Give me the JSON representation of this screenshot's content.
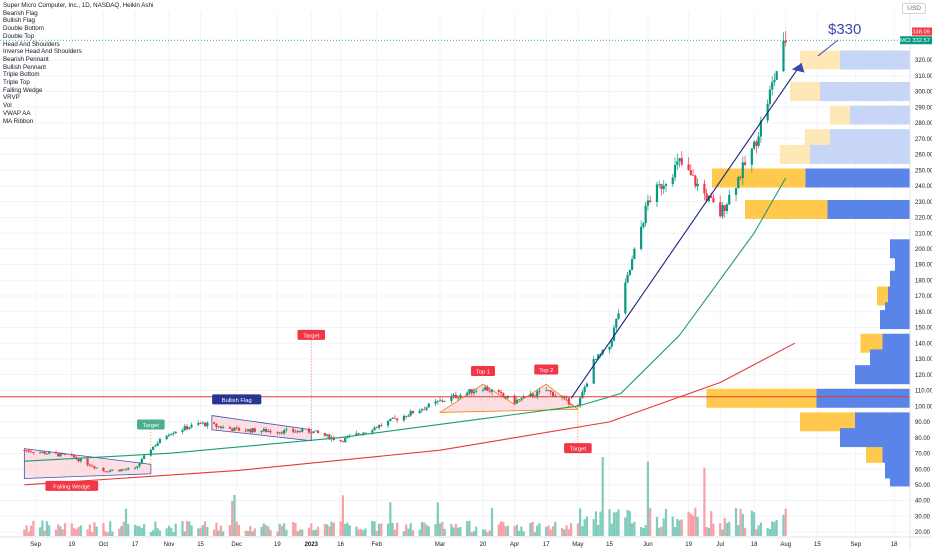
{
  "header": {
    "title": "Super Micro Computer, Inc., 1D, NASDAQ, Heikin Ashi",
    "currency": "USD"
  },
  "indicators": [
    "Bearish Flag",
    "Bullish Flag",
    "Double Bottom",
    "Double Top",
    "Head And Shoulders",
    "Inverse Head And Shoulders",
    "Bearish Pennant",
    "Bullish Pennant",
    "Triple Bottom",
    "Triple Top",
    "Falling Wedge",
    "VRVP",
    "Vol",
    "VWAP AA",
    "MA Ribbon"
  ],
  "price_tags": [
    {
      "value": "338.09",
      "color": "#f23645"
    },
    {
      "value": "332.57",
      "color": "#089981",
      "prefix": "SMCI"
    }
  ],
  "colors": {
    "up": "#089981",
    "down": "#f23645",
    "vol_up": "#7fcbbc",
    "vol_down": "#f7a1a6",
    "ma_green": "#1e9b6e",
    "ma_red": "#e53935",
    "trend_blue": "#1a237e",
    "vp_up": "#5b84e8",
    "vp_down": "#ffc94d",
    "vp_up_light": "#c7d6f6",
    "vp_down_light": "#ffe8b8",
    "pattern_fill": "#f8c9cf",
    "pattern_line_blue": "#3f51b5",
    "pattern_line_orange": "#f57c00",
    "label_red": "#f23645",
    "label_green": "#4caf8a",
    "label_navy": "#283593",
    "resistance": "#e53935",
    "annotation": "#3949ab"
  },
  "chart_data": {
    "type": "candlestick",
    "title": "Super Micro Computer, Inc., 1D, NASDAQ, Heikin Ashi",
    "y_axis": {
      "ticks": [
        20,
        30,
        40,
        50,
        60,
        70,
        80,
        90,
        100,
        110,
        120,
        130,
        140,
        150,
        160,
        170,
        180,
        190,
        200,
        210,
        220,
        230,
        240,
        250,
        260,
        270,
        280,
        290,
        300,
        310,
        320
      ],
      "range": [
        17,
        345
      ],
      "position": "right"
    },
    "x_axis": {
      "ticks": [
        "Sep",
        "19",
        "Oct",
        "17",
        "Nov",
        "15",
        "Dec",
        "19",
        "2023",
        "16",
        "Feb",
        "Mar",
        "20",
        "Apr",
        "17",
        "May",
        "15",
        "Jun",
        "19",
        "Jul",
        "18",
        "Aug",
        "15",
        "Sep",
        "18"
      ]
    },
    "price_series": [
      [
        "2022-08-29",
        72
      ],
      [
        "2022-09-19",
        68
      ],
      [
        "2022-10-03",
        59
      ],
      [
        "2022-10-17",
        60
      ],
      [
        "2022-10-24",
        73
      ],
      [
        "2022-11-01",
        83
      ],
      [
        "2022-11-15",
        89
      ],
      [
        "2022-12-01",
        85
      ],
      [
        "2022-12-19",
        84
      ],
      [
        "2023-01-03",
        84
      ],
      [
        "2023-01-16",
        78
      ],
      [
        "2023-02-01",
        87
      ],
      [
        "2023-03-01",
        103
      ],
      [
        "2023-03-20",
        112
      ],
      [
        "2023-04-03",
        103
      ],
      [
        "2023-04-17",
        110
      ],
      [
        "2023-05-01",
        100
      ],
      [
        "2023-05-08",
        128
      ],
      [
        "2023-05-15",
        138
      ],
      [
        "2023-06-01",
        230
      ],
      [
        "2023-06-15",
        255
      ],
      [
        "2023-07-03",
        222
      ],
      [
        "2023-07-18",
        265
      ],
      [
        "2023-08-01",
        333
      ]
    ],
    "ma_series": [
      {
        "color": "green",
        "values": [
          [
            "2022-08-29",
            65
          ],
          [
            "2022-11-01",
            70
          ],
          [
            "2023-01-16",
            80
          ],
          [
            "2023-03-20",
            92
          ],
          [
            "2023-05-01",
            100
          ],
          [
            "2023-05-20",
            108
          ],
          [
            "2023-06-15",
            145
          ],
          [
            "2023-07-18",
            210
          ],
          [
            "2023-08-01",
            245
          ]
        ]
      },
      {
        "color": "red",
        "values": [
          [
            "2022-08-29",
            50
          ],
          [
            "2022-12-01",
            59
          ],
          [
            "2023-03-01",
            72
          ],
          [
            "2023-05-15",
            90
          ],
          [
            "2023-07-03",
            115
          ],
          [
            "2023-08-05",
            140
          ]
        ]
      }
    ],
    "volume_profile": [
      {
        "price": 245,
        "up": 190,
        "down": 170
      },
      {
        "price": 225,
        "up": 150,
        "down": 150
      },
      {
        "price": 170,
        "up": 40,
        "down": 20
      },
      {
        "price": 140,
        "up": 50,
        "down": 40
      },
      {
        "price": 105,
        "up": 170,
        "down": 200
      },
      {
        "price": 90,
        "up": 100,
        "down": 100
      },
      {
        "price": 70,
        "up": 50,
        "down": 30
      }
    ],
    "resistance_level": 106,
    "current_price": 332.57,
    "high_price": 338.09,
    "annotations": [
      {
        "text": "$330"
      },
      {
        "text": "Target"
      },
      {
        "text": "Target"
      },
      {
        "text": "Target"
      },
      {
        "text": "Bullish Flag"
      },
      {
        "text": "Falling Wedge"
      },
      {
        "text": "Top 1"
      },
      {
        "text": "Top 2"
      }
    ],
    "volume_ticks": [
      ""
    ],
    "grid": true,
    "legend": "top-left"
  }
}
